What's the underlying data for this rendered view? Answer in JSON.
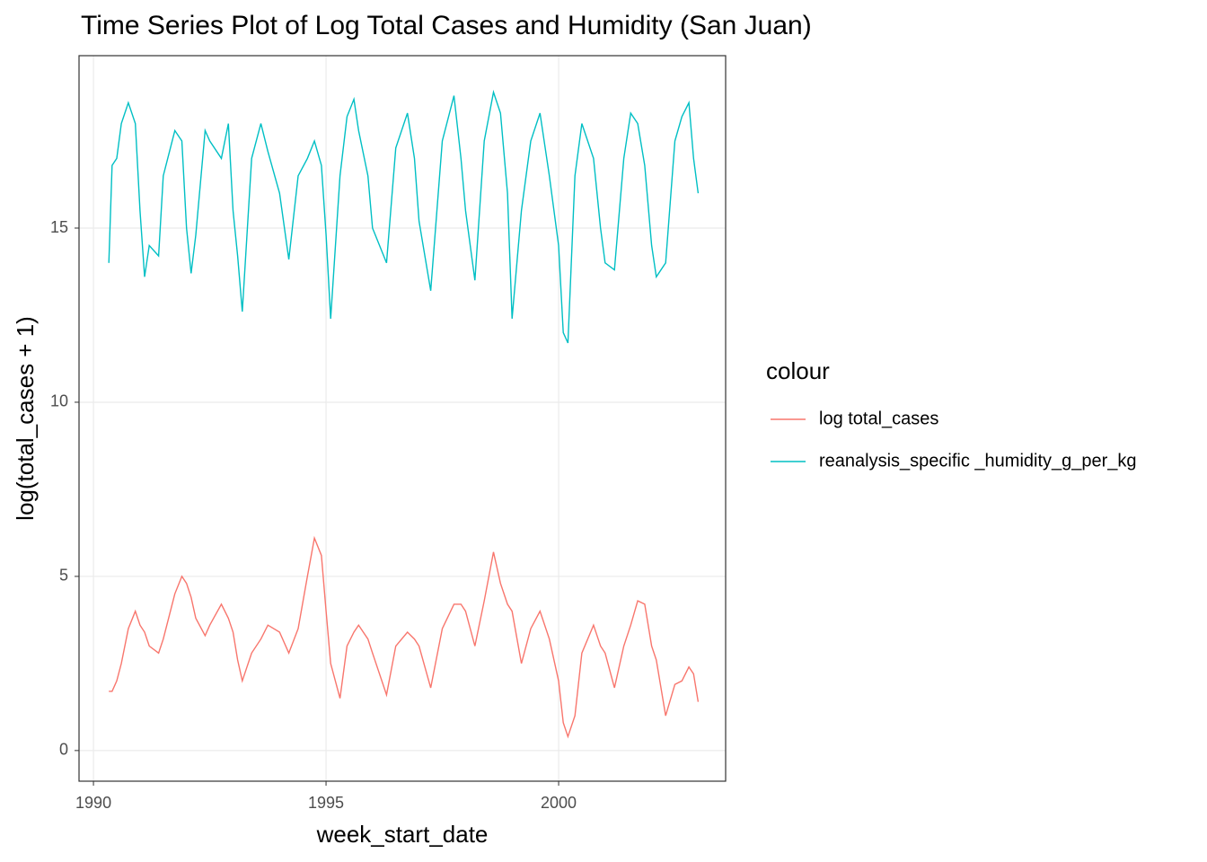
{
  "chart_data": {
    "type": "line",
    "title": "Time Series Plot of Log Total Cases and Humidity (San Juan)",
    "xlabel": "week_start_date",
    "ylabel": "log(total_cases + 1)",
    "legend_title": "colour",
    "legend": "right",
    "grid": true,
    "x": [
      1990.33,
      1990.4,
      1990.5,
      1990.6,
      1990.75,
      1990.9,
      1991.0,
      1991.1,
      1991.2,
      1991.4,
      1991.5,
      1991.75,
      1991.9,
      1992.0,
      1992.1,
      1992.2,
      1992.4,
      1992.5,
      1992.75,
      1992.9,
      1993.0,
      1993.1,
      1993.2,
      1993.4,
      1993.6,
      1993.75,
      1994.0,
      1994.2,
      1994.4,
      1994.6,
      1994.75,
      1994.9,
      1995.0,
      1995.1,
      1995.3,
      1995.45,
      1995.6,
      1995.7,
      1995.9,
      1996.0,
      1996.3,
      1996.5,
      1996.75,
      1996.9,
      1997.0,
      1997.25,
      1997.5,
      1997.75,
      1997.9,
      1998.0,
      1998.2,
      1998.4,
      1998.6,
      1998.75,
      1998.9,
      1999.0,
      1999.2,
      1999.4,
      1999.6,
      1999.8,
      2000.0,
      2000.1,
      2000.2,
      2000.35,
      2000.5,
      2000.75,
      2000.9,
      2001.0,
      2001.2,
      2001.4,
      2001.55,
      2001.7,
      2001.85,
      2002.0,
      2002.1,
      2002.3,
      2002.5,
      2002.65,
      2002.8,
      2002.9,
      2003.0
    ],
    "series": [
      {
        "name": "log total_cases",
        "color": "#F8766D",
        "values": [
          1.7,
          1.7,
          2.0,
          2.5,
          3.5,
          4.0,
          3.6,
          3.4,
          3.0,
          2.8,
          3.2,
          4.5,
          5.0,
          4.8,
          4.4,
          3.8,
          3.3,
          3.6,
          4.2,
          3.8,
          3.4,
          2.6,
          2.0,
          2.8,
          3.2,
          3.6,
          3.4,
          2.8,
          3.5,
          5.0,
          6.1,
          5.6,
          4.0,
          2.5,
          1.5,
          3.0,
          3.4,
          3.6,
          3.2,
          2.8,
          1.6,
          3.0,
          3.4,
          3.2,
          3.0,
          1.8,
          3.5,
          4.2,
          4.2,
          4.0,
          3.0,
          4.3,
          5.7,
          4.8,
          4.2,
          4.0,
          2.5,
          3.5,
          4.0,
          3.2,
          2.0,
          0.8,
          0.4,
          1.0,
          2.8,
          3.6,
          3.0,
          2.8,
          1.8,
          3.0,
          3.6,
          4.3,
          4.2,
          3.0,
          2.6,
          1.0,
          1.9,
          2.0,
          2.4,
          2.2,
          1.4
        ]
      },
      {
        "name": "reanalysis_specific _humidity_g_per_kg",
        "color": "#00BFC4",
        "values": [
          14.0,
          16.8,
          17.0,
          18.0,
          18.6,
          18.0,
          15.5,
          13.6,
          14.5,
          14.2,
          16.5,
          17.8,
          17.5,
          15.0,
          13.7,
          14.8,
          17.8,
          17.5,
          17.0,
          18.0,
          15.5,
          14.2,
          12.6,
          17.0,
          18.0,
          17.2,
          16.0,
          14.1,
          16.5,
          17.0,
          17.5,
          16.8,
          14.8,
          12.4,
          16.5,
          18.2,
          18.7,
          17.8,
          16.5,
          15.0,
          14.0,
          17.3,
          18.3,
          17.0,
          15.2,
          13.2,
          17.5,
          18.8,
          17.0,
          15.5,
          13.5,
          17.5,
          18.9,
          18.3,
          16.0,
          12.4,
          15.5,
          17.5,
          18.3,
          16.5,
          14.5,
          12.0,
          11.7,
          16.5,
          18.0,
          17.0,
          15.0,
          14.0,
          13.8,
          17.0,
          18.3,
          18.0,
          16.8,
          14.5,
          13.6,
          14.0,
          17.5,
          18.2,
          18.6,
          17.0,
          16.0
        ]
      }
    ],
    "xlim": [
      1989.69,
      2003.59
    ],
    "xticks": [
      1990,
      1995,
      2000
    ],
    "ylim": [
      -0.88,
      19.95
    ],
    "yticks": [
      0,
      5,
      10,
      15
    ]
  }
}
